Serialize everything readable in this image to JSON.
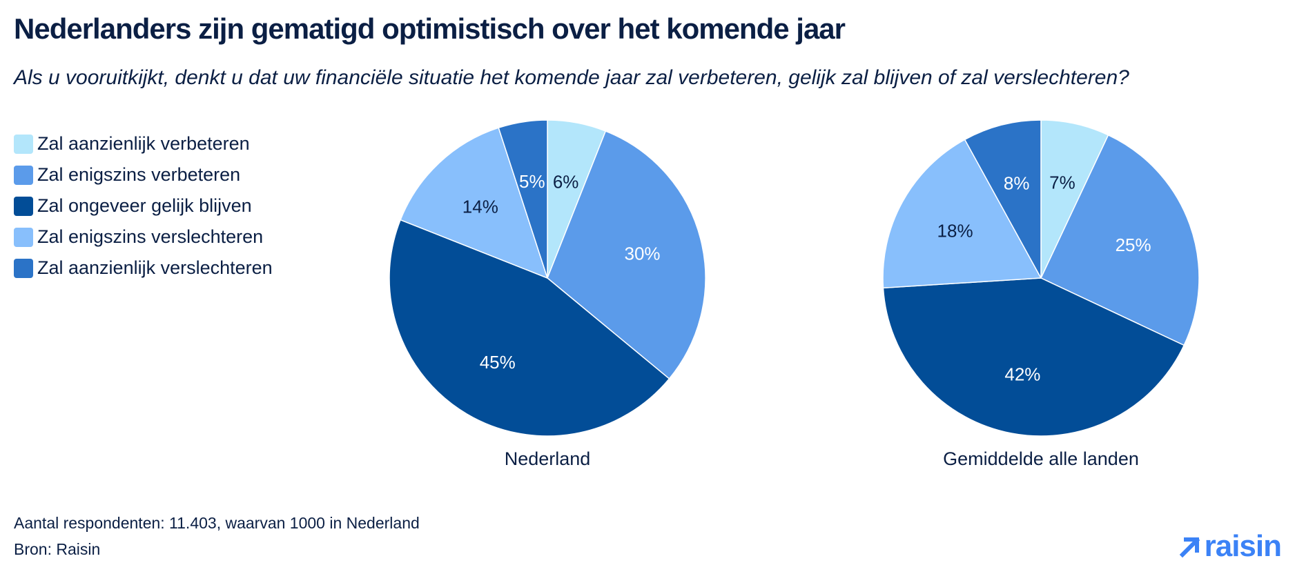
{
  "title": "Nederlanders zijn gematigd optimistisch over het komende jaar",
  "subtitle": "Als u vooruitkijkt, denkt u dat uw financiële situatie het komende jaar zal verbeteren, gelijk zal blijven of zal verslechteren?",
  "legend": [
    {
      "label": "Zal aanzienlijk verbeteren",
      "color": "#b3e6fb"
    },
    {
      "label": "Zal enigszins verbeteren",
      "color": "#5b9bea"
    },
    {
      "label": "Zal ongeveer gelijk blijven",
      "color": "#024d97"
    },
    {
      "label": "Zal enigszins verslechteren",
      "color": "#88bffc"
    },
    {
      "label": "Zal aanzienlijk verslechteren",
      "color": "#2b73c7"
    }
  ],
  "chart_data": [
    {
      "type": "pie",
      "title": "Nederland",
      "categories": [
        "Zal aanzienlijk verbeteren",
        "Zal enigszins verbeteren",
        "Zal ongeveer gelijk blijven",
        "Zal enigszins verslechteren",
        "Zal aanzienlijk verslechteren"
      ],
      "values": [
        6,
        30,
        45,
        14,
        5
      ],
      "labels": [
        "6%",
        "30%",
        "45%",
        "14%",
        "5%"
      ],
      "label_colors": [
        "#0b1f44",
        "#ffffff",
        "#ffffff",
        "#0b1f44",
        "#ffffff"
      ]
    },
    {
      "type": "pie",
      "title": "Gemiddelde alle landen",
      "categories": [
        "Zal aanzienlijk verbeteren",
        "Zal enigszins verbeteren",
        "Zal ongeveer gelijk blijven",
        "Zal enigszins verslechteren",
        "Zal aanzienlijk verslechteren"
      ],
      "values": [
        7,
        25,
        42,
        18,
        8
      ],
      "labels": [
        "7%",
        "25%",
        "42%",
        "18%",
        "8%"
      ],
      "label_colors": [
        "#0b1f44",
        "#ffffff",
        "#ffffff",
        "#0b1f44",
        "#ffffff"
      ]
    }
  ],
  "footnotes": {
    "respondents": "Aantal respondenten: 11.403, waarvan 1000 in Nederland",
    "source": "Bron: Raisin"
  },
  "logo": {
    "text": "raisin",
    "icon": "arrow-up-right-icon",
    "color": "#3b82f6"
  }
}
